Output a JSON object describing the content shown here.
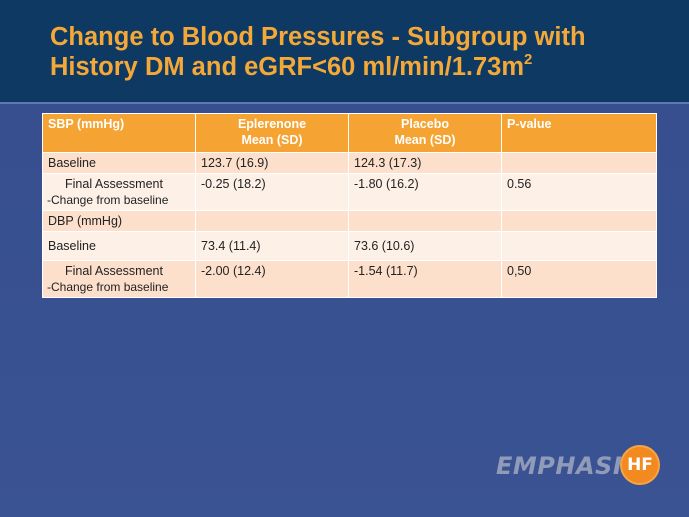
{
  "slide": {
    "title": "Change to Blood Pressures - Subgroup with History DM and eGRF<60 ml/min/1.73m",
    "title_superscript": "2"
  },
  "table": {
    "headers": {
      "col1": "SBP (mmHg)",
      "col2_line1": "Eplerenone",
      "col2_line2": "Mean (SD)",
      "col3_line1": "Placebo",
      "col3_line2": "Mean (SD)",
      "col4": "P-value"
    },
    "rows": [
      {
        "label": "Baseline",
        "eplerenone": "123.7 (16.9)",
        "placebo": "124.3 (17.3)",
        "pvalue": ""
      },
      {
        "label": "Final Assessment",
        "note": "-Change from baseline",
        "eplerenone": "-0.25 (18.2)",
        "placebo": "-1.80 (16.2)",
        "pvalue": "0.56"
      },
      {
        "section": "DBP (mmHg)"
      },
      {
        "label": "Baseline",
        "eplerenone": "73.4 (11.4)",
        "placebo": "73.6 (10.6)",
        "pvalue": ""
      },
      {
        "label": "Final Assessment",
        "note": "-Change from baseline",
        "eplerenone": "-2.00 (12.4)",
        "placebo": "-1.54 (11.7)",
        "pvalue": "0,50"
      }
    ]
  },
  "logo": {
    "text": "EMPHASIS",
    "badge": "HF",
    "colors": {
      "text": "#8f9bb8",
      "badge": "#f28a1f"
    }
  },
  "colors": {
    "header_bg": "#0e3963",
    "title": "#f4a838",
    "table_header": "#f5a332",
    "row_dark": "#fce0cc",
    "row_light": "#fdf0e7",
    "slide_bg": "#3a4e8f"
  }
}
